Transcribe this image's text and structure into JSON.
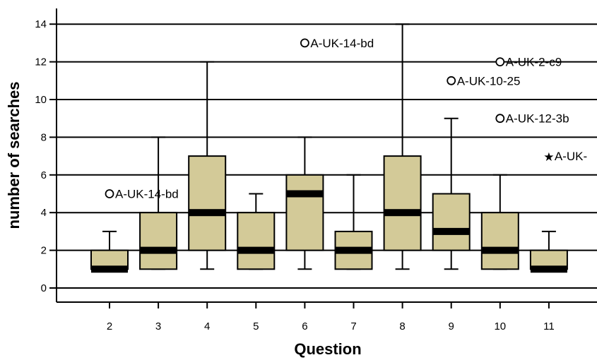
{
  "chart_data": {
    "type": "boxplot",
    "xlabel": "Question",
    "ylabel": "number of searches",
    "ylim": [
      -0.8,
      14.8
    ],
    "yticks": [
      0,
      2,
      4,
      6,
      8,
      10,
      12,
      14
    ],
    "grid": "horizontal lines at y ticks",
    "colors": {
      "box_fill": "#d3ca98",
      "stroke": "#000000",
      "background": "#ffffff"
    },
    "categories": [
      "2",
      "3",
      "4",
      "5",
      "6",
      "7",
      "8",
      "9",
      "10",
      "11"
    ],
    "boxes": [
      {
        "category": "2",
        "lower_whisker": 1,
        "q1": 1,
        "median": 1,
        "q3": 2,
        "upper_whisker": 3
      },
      {
        "category": "3",
        "lower_whisker": 1,
        "q1": 1,
        "median": 2,
        "q3": 4,
        "upper_whisker": 8
      },
      {
        "category": "4",
        "lower_whisker": 1,
        "q1": 2,
        "median": 4,
        "q3": 7,
        "upper_whisker": 12
      },
      {
        "category": "5",
        "lower_whisker": 1,
        "q1": 1,
        "median": 2,
        "q3": 4,
        "upper_whisker": 5
      },
      {
        "category": "6",
        "lower_whisker": 1,
        "q1": 2,
        "median": 5,
        "q3": 6,
        "upper_whisker": 8
      },
      {
        "category": "7",
        "lower_whisker": 1,
        "q1": 1,
        "median": 2,
        "q3": 3,
        "upper_whisker": 6
      },
      {
        "category": "8",
        "lower_whisker": 1,
        "q1": 2,
        "median": 4,
        "q3": 7,
        "upper_whisker": 14
      },
      {
        "category": "9",
        "lower_whisker": 1,
        "q1": 2,
        "median": 3,
        "q3": 5,
        "upper_whisker": 9
      },
      {
        "category": "10",
        "lower_whisker": 1,
        "q1": 1,
        "median": 2,
        "q3": 4,
        "upper_whisker": 6
      },
      {
        "category": "11",
        "lower_whisker": 1,
        "q1": 1,
        "median": 1,
        "q3": 2,
        "upper_whisker": 3
      }
    ],
    "outliers": [
      {
        "category": "2",
        "value": 5,
        "marker": "circle",
        "label": "A-UK-14-bd"
      },
      {
        "category": "6",
        "value": 13,
        "marker": "circle",
        "label": "A-UK-14-bd"
      },
      {
        "category": "9",
        "value": 11,
        "marker": "circle",
        "label": "A-UK-10-25"
      },
      {
        "category": "10",
        "value": 12,
        "marker": "circle",
        "label": "A-UK-2-c9"
      },
      {
        "category": "10",
        "value": 9,
        "marker": "circle",
        "label": "A-UK-12-3b"
      },
      {
        "category": "11",
        "value": 7,
        "marker": "star",
        "label": "A-UK-"
      }
    ]
  }
}
